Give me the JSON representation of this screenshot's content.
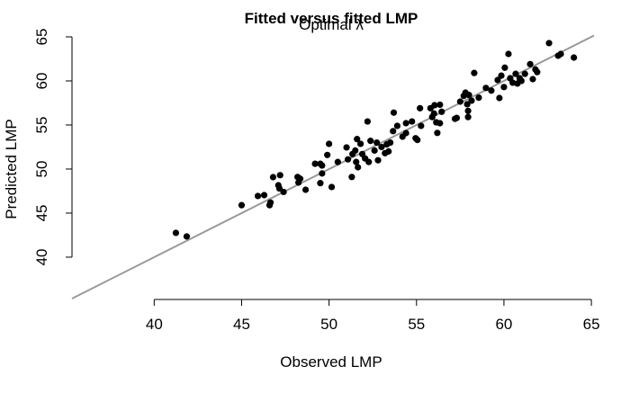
{
  "chart_data": {
    "type": "scatter",
    "title": "Fitted versus fitted LMP",
    "subtitle": "Optimal λ",
    "x_label": "Observed LMP",
    "y_label": "Predicted LMP",
    "x": [
      41.24,
      41.86,
      45.0,
      45.93,
      46.29,
      46.6,
      46.65,
      46.8,
      47.1,
      47.2,
      47.16,
      47.4,
      48.2,
      48.25,
      48.35,
      48.66,
      49.2,
      49.5,
      49.5,
      49.6,
      49.6,
      49.9,
      50.0,
      50.15,
      50.5,
      51.0,
      51.08,
      51.3,
      51.34,
      51.5,
      51.55,
      51.6,
      51.65,
      51.8,
      51.9,
      52.06,
      52.2,
      52.27,
      52.37,
      52.6,
      52.73,
      52.8,
      53.0,
      53.2,
      53.3,
      53.4,
      53.5,
      53.66,
      53.7,
      53.9,
      54.2,
      54.4,
      54.4,
      54.74,
      54.95,
      55.05,
      55.26,
      55.2,
      55.8,
      55.9,
      56.0,
      56.03,
      56.13,
      56.19,
      56.34,
      56.44,
      56.34,
      57.2,
      57.3,
      57.5,
      57.7,
      57.8,
      57.9,
      57.95,
      58.0,
      57.95,
      58.15,
      58.3,
      58.56,
      58.97,
      59.28,
      59.64,
      59.74,
      59.85,
      60.0,
      60.05,
      60.26,
      60.36,
      60.5,
      60.67,
      60.77,
      60.9,
      61.0,
      61.2,
      61.5,
      61.65,
      61.8,
      61.9,
      62.58,
      63.1,
      63.25,
      64.0
    ],
    "series": [
      {
        "color": "#000000",
        "values": [
          42.76,
          42.35,
          45.9,
          46.94,
          47.04,
          45.9,
          46.2,
          49.08,
          48.16,
          49.3,
          47.8,
          47.4,
          49.1,
          48.47,
          48.9,
          47.65,
          50.6,
          50.6,
          48.4,
          49.5,
          50.4,
          51.6,
          52.86,
          47.96,
          50.8,
          52.45,
          51.1,
          49.1,
          51.7,
          52.1,
          50.8,
          53.4,
          50.2,
          52.86,
          51.7,
          51.2,
          55.4,
          50.8,
          53.2,
          52.1,
          53.0,
          51.0,
          52.5,
          51.8,
          52.8,
          52.0,
          53.0,
          54.3,
          56.4,
          54.9,
          53.67,
          54.08,
          55.2,
          55.4,
          53.5,
          53.3,
          54.9,
          56.9,
          56.9,
          55.9,
          56.3,
          57.24,
          55.3,
          54.1,
          55.2,
          56.5,
          57.3,
          55.7,
          55.8,
          57.65,
          58.3,
          58.67,
          57.35,
          55.9,
          58.4,
          56.6,
          57.76,
          60.9,
          58.1,
          59.2,
          58.9,
          60.1,
          58.06,
          60.6,
          59.3,
          61.5,
          63.06,
          60.3,
          59.8,
          60.8,
          59.7,
          60.3,
          60.0,
          60.8,
          61.9,
          60.2,
          61.3,
          61.0,
          64.29,
          62.86,
          63.06,
          62.65
        ]
      }
    ],
    "xlim": [
      35.3,
      65.15
    ],
    "ylim": [
      35.2,
      65.1
    ],
    "xticks": [
      40,
      45,
      50,
      55,
      60,
      65
    ],
    "yticks": [
      40,
      45,
      50,
      55,
      60,
      65
    ],
    "reference_line": {
      "intercept": 0,
      "slope": 1,
      "color": "#999999"
    }
  }
}
